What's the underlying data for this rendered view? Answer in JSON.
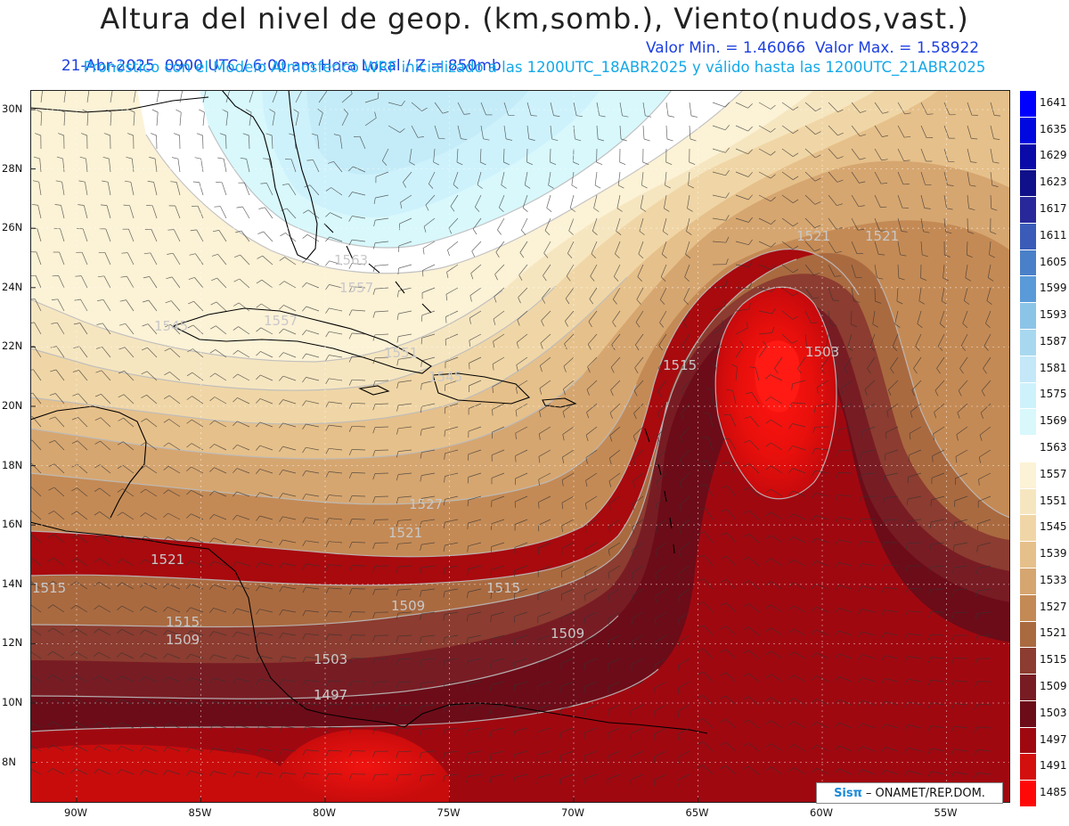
{
  "header": {
    "title": "Altura del nivel de geop. (km,somb.), Viento(nudos,vast.)",
    "line1_left": "21-Abr-2025  0900 UTC / 6:00 am Hora Local / Z = 850mb",
    "line1_right": "Valor Min. = 1.46066  Valor Max. = 1.58922",
    "line2": "Pronóstico con el Modelo Atmosferico WRF inicializado a las 1200UTC_18ABR2025 y válido hasta las  1200UTC_21ABR2025"
  },
  "map": {
    "lat_labels": [
      "30N",
      "28N",
      "26N",
      "24N",
      "22N",
      "20N",
      "18N",
      "16N",
      "14N",
      "12N",
      "10N",
      "8N"
    ],
    "lon_labels": [
      "90W",
      "85W",
      "80W",
      "75W",
      "70W",
      "65W",
      "60W",
      "55W"
    ],
    "contour_labels": [
      {
        "text": "1521",
        "area": "northeast"
      },
      {
        "text": "1521",
        "area": "northeast-far"
      },
      {
        "text": "1515",
        "area": "central-east"
      },
      {
        "text": "1503",
        "area": "east-core"
      },
      {
        "text": "1563",
        "area": "bahamas"
      },
      {
        "text": "1557",
        "area": "bahamas-south"
      },
      {
        "text": "1557",
        "area": "gulf-east"
      },
      {
        "text": "1545",
        "area": "gulf"
      },
      {
        "text": "1551",
        "area": "cuba-east"
      },
      {
        "text": "1545",
        "area": "hispaniola-north"
      },
      {
        "text": "1527",
        "area": "caribbean-north"
      },
      {
        "text": "1521",
        "area": "caribbean-central"
      },
      {
        "text": "1521",
        "area": "honduras-coast"
      },
      {
        "text": "1515",
        "area": "west-edge"
      },
      {
        "text": "1515",
        "area": "caribbean-south"
      },
      {
        "text": "1515",
        "area": "central-america"
      },
      {
        "text": "1509",
        "area": "caribbean-south-central"
      },
      {
        "text": "1509",
        "area": "colombia-north"
      },
      {
        "text": "1509",
        "area": "nicaragua"
      },
      {
        "text": "1503",
        "area": "panama-north"
      },
      {
        "text": "1497",
        "area": "panama"
      }
    ]
  },
  "colorbar": {
    "levels": [
      "1641",
      "1635",
      "1629",
      "1623",
      "1617",
      "1611",
      "1605",
      "1599",
      "1593",
      "1587",
      "1581",
      "1575",
      "1569",
      "1563",
      "1557",
      "1551",
      "1545",
      "1539",
      "1533",
      "1527",
      "1521",
      "1515",
      "1509",
      "1503",
      "1497",
      "1491",
      "1485"
    ],
    "colors": [
      "#0000ff",
      "#0008e0",
      "#0a0aa8",
      "#10108a",
      "#28289a",
      "#3a5cb8",
      "#4a80c8",
      "#5a9ad8",
      "#8cc4e8",
      "#a8d8f0",
      "#c4e8f8",
      "#cef2fc",
      "#d8f8fc",
      "#ffffff",
      "#fcf2d6",
      "#f6e6c0",
      "#f0d6a6",
      "#e6c08a",
      "#d6a670",
      "#c48a55",
      "#aa6a40",
      "#8c3c30",
      "#781c24",
      "#6c0c18",
      "#a00810",
      "#d4100e",
      "#ff0808"
    ]
  },
  "credit": {
    "brand": "Sisπ",
    "text": "– ONAMET/REP.DOM."
  }
}
